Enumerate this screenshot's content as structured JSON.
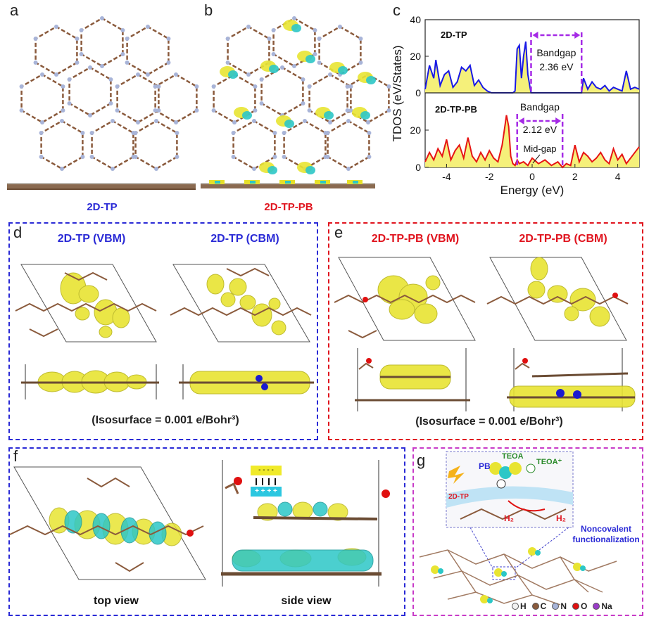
{
  "panels": {
    "a": {
      "label": "a",
      "caption": "2D-TP",
      "caption_color": "#2a2ad6"
    },
    "b": {
      "label": "b",
      "caption": "2D-TP-PB",
      "caption_color": "#e0141e"
    },
    "c": {
      "label": "c"
    },
    "d": {
      "label": "d",
      "vbm_title": "2D-TP (VBM)",
      "cbm_title": "2D-TP (CBM)",
      "title_color": "#2a2ad6",
      "isosurface": "(Isosurface = 0.001 e/Bohr³)",
      "border_color": "#2a2ad6"
    },
    "e": {
      "label": "e",
      "vbm_title": "2D-TP-PB (VBM)",
      "cbm_title": "2D-TP-PB (CBM)",
      "title_color": "#e0141e",
      "isosurface": "(Isosurface = 0.001 e/Bohr³)",
      "border_color": "#e0141e"
    },
    "f": {
      "label": "f",
      "top_caption": "top view",
      "side_caption": "side view",
      "dipole_minus": "- - - -",
      "dipole_plus": "+ + + +",
      "border_color": "#2a2ad6"
    },
    "g": {
      "label": "g",
      "pb_label": "PB",
      "tp_label": "2D-TP",
      "teoa": "TEOA",
      "teoa_plus": "TEOA⁺",
      "h2_left": "H₂",
      "h2_right": "H₂",
      "noncov": "Noncovalent functionalization",
      "border_color": "#c83cc8",
      "legend": [
        {
          "name": "H",
          "color": "#f2f2f2"
        },
        {
          "name": "C",
          "color": "#8a5a3c"
        },
        {
          "name": "N",
          "color": "#a8b4d8"
        },
        {
          "name": "O",
          "color": "#e01010"
        },
        {
          "name": "Na",
          "color": "#9a3cc8"
        }
      ]
    }
  },
  "chart_data": {
    "type": "line",
    "ylabel": "TDOS (eV/States)",
    "xlabel": "Energy (eV)",
    "xlim": [
      -5,
      5
    ],
    "xticks": [
      -4,
      -2,
      0,
      2,
      4
    ],
    "subplots": [
      {
        "name": "2D-TP",
        "color": "#1818e6",
        "ylim": [
          0,
          40
        ],
        "yticks": [
          0,
          20,
          40
        ],
        "bandgap_label": "Bandgap",
        "bandgap_value": "2.36 eV",
        "gap": [
          -0.05,
          2.31
        ],
        "x": [
          -5,
          -4.8,
          -4.6,
          -4.5,
          -4.3,
          -4.1,
          -3.9,
          -3.7,
          -3.5,
          -3.3,
          -3.1,
          -2.9,
          -2.7,
          -2.5,
          -2.3,
          -2.1,
          -1.9,
          -1.7,
          -1.5,
          -1.3,
          -1.1,
          -0.9,
          -0.8,
          -0.7,
          -0.6,
          -0.5,
          -0.4,
          -0.3,
          -0.2,
          -0.1,
          -0.05,
          2.31,
          2.4,
          2.6,
          2.8,
          3.0,
          3.2,
          3.4,
          3.6,
          3.8,
          4.0,
          4.2,
          4.4,
          4.6,
          4.8,
          5.0
        ],
        "y": [
          2,
          15,
          8,
          18,
          4,
          10,
          12,
          3,
          6,
          14,
          12,
          15,
          4,
          7,
          3,
          1,
          0,
          0,
          0,
          0,
          0,
          0,
          1,
          24,
          26,
          8,
          20,
          28,
          10,
          3,
          0,
          0,
          8,
          2,
          6,
          3,
          2,
          4,
          1,
          3,
          2,
          1,
          12,
          2,
          3,
          2
        ]
      },
      {
        "name": "2D-TP-PB",
        "color": "#e61414",
        "ylim": [
          0,
          40
        ],
        "yticks": [
          0,
          20
        ],
        "bandgap_label": "Bandgap",
        "bandgap_value": "2.12 eV",
        "midgap_label": "Mid-gap",
        "gap": [
          -0.7,
          1.42
        ],
        "x": [
          -5,
          -4.8,
          -4.6,
          -4.4,
          -4.2,
          -4.0,
          -3.8,
          -3.6,
          -3.4,
          -3.2,
          -3.0,
          -2.8,
          -2.6,
          -2.4,
          -2.2,
          -2.0,
          -1.8,
          -1.6,
          -1.4,
          -1.3,
          -1.2,
          -1.1,
          -1.0,
          -0.9,
          -0.8,
          -0.7,
          -0.6,
          -0.4,
          -0.2,
          0,
          0.3,
          0.6,
          0.9,
          1.2,
          1.42,
          1.6,
          1.8,
          2.0,
          2.2,
          2.4,
          2.6,
          2.8,
          3.0,
          3.2,
          3.4,
          3.6,
          3.8,
          4.0,
          4.2,
          4.4,
          4.6,
          4.8,
          5.0
        ],
        "y": [
          3,
          8,
          4,
          10,
          6,
          15,
          4,
          9,
          12,
          5,
          16,
          6,
          3,
          8,
          4,
          9,
          5,
          3,
          12,
          20,
          28,
          22,
          6,
          2,
          1,
          4,
          2,
          3,
          1,
          5,
          2,
          4,
          1,
          3,
          0,
          2,
          1,
          12,
          3,
          8,
          6,
          3,
          5,
          8,
          4,
          2,
          10,
          4,
          7,
          2,
          5,
          8,
          11
        ]
      }
    ]
  }
}
